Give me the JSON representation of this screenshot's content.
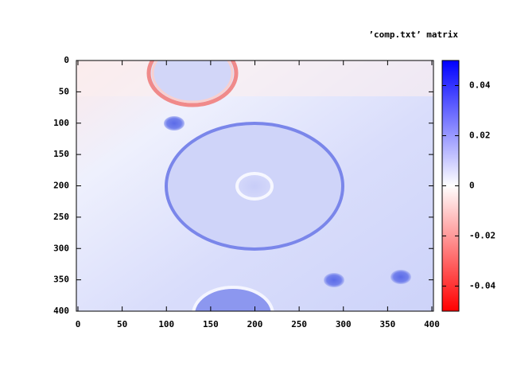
{
  "chart_data": {
    "type": "heatmap",
    "title": "’comp.txt’ matrix",
    "xlim": [
      0,
      400
    ],
    "xticks": [
      0,
      50,
      100,
      150,
      200,
      250,
      300,
      350,
      400
    ],
    "ylim": [
      0,
      400
    ],
    "yticks": [
      0,
      50,
      100,
      150,
      200,
      250,
      300,
      350,
      400
    ],
    "y_reversed": true,
    "clim": [
      -0.05,
      0.05
    ],
    "cticks": [
      -0.04,
      -0.02,
      0,
      0.02,
      0.04
    ],
    "colormap": [
      "#ff0000",
      "#ffffff",
      "#0000ff"
    ]
  }
}
